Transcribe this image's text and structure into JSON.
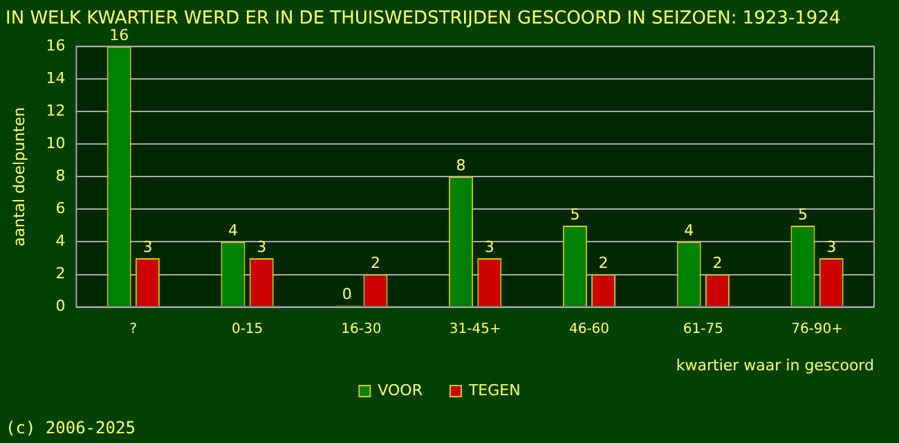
{
  "chart_data": {
    "type": "bar",
    "title": "IN WELK KWARTIER WERD ER IN DE THUISWEDSTRIJDEN GESCOORD IN SEIZOEN: 1923-1924",
    "categories": [
      "?",
      "0-15",
      "16-30",
      "31-45+",
      "46-60",
      "61-75",
      "76-90+"
    ],
    "series": [
      {
        "name": "VOOR",
        "color": "#008000",
        "values": [
          16,
          4,
          0,
          8,
          5,
          4,
          5
        ]
      },
      {
        "name": "TEGEN",
        "color": "#cc0000",
        "values": [
          3,
          3,
          2,
          3,
          2,
          2,
          3
        ]
      }
    ],
    "xlabel": "kwartier waar in gescoord",
    "ylabel": "aantal doelpunten",
    "ylim": [
      0,
      16
    ],
    "yticks": [
      0,
      2,
      4,
      6,
      8,
      10,
      12,
      14,
      16
    ],
    "grid": "y",
    "legend": "bottom",
    "data_labels": true,
    "annotations": [
      "(c) 2006-2025"
    ]
  }
}
